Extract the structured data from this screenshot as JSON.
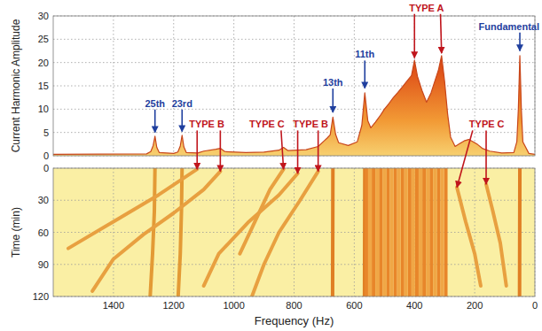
{
  "chart_data": [
    {
      "type": "area",
      "y_label": "Current Harmonic Amplitude",
      "xlim": [
        1600,
        0
      ],
      "xticks": [
        1400,
        1200,
        1000,
        800,
        600,
        400,
        200,
        0
      ],
      "ylim": [
        0,
        30
      ],
      "yticks": [
        0,
        5,
        10,
        15,
        20,
        25,
        30
      ],
      "grid": true,
      "tick_labels": "y",
      "series": [
        {
          "color": "#c8461a",
          "x": [
            1600,
            1290,
            1276,
            1268,
            1262,
            1256,
            1248,
            1200,
            1186,
            1178,
            1172,
            1166,
            1158,
            1120,
            1100,
            1060,
            1045,
            1030,
            960,
            900,
            850,
            835,
            820,
            760,
            720,
            700,
            690,
            680,
            671,
            662,
            652,
            620,
            590,
            575,
            565,
            555,
            545,
            530,
            515,
            500,
            485,
            470,
            455,
            440,
            425,
            410,
            400,
            390,
            375,
            360,
            345,
            330,
            320,
            310,
            300,
            290,
            280,
            265,
            250,
            235,
            220,
            205,
            190,
            175,
            150,
            110,
            70,
            60,
            55,
            50,
            45,
            40,
            20,
            0
          ],
          "values": [
            0.3,
            0.4,
            0.9,
            2.2,
            4.2,
            1.8,
            0.7,
            0.5,
            0.8,
            2.1,
            4.4,
            1.9,
            0.7,
            0.6,
            1.0,
            1.4,
            1.6,
            0.9,
            0.7,
            0.8,
            1.2,
            1.8,
            1.1,
            1.3,
            2.0,
            3.2,
            3.8,
            4.5,
            8.3,
            4.6,
            2.8,
            2.2,
            3.0,
            6.5,
            13.5,
            7.5,
            6.0,
            7.2,
            8.5,
            10.0,
            11.2,
            12.5,
            13.6,
            14.8,
            16.0,
            17.2,
            20.5,
            17.0,
            14.0,
            11.5,
            13.5,
            16.5,
            18.5,
            21.5,
            16.0,
            9.0,
            4.0,
            2.0,
            2.6,
            3.2,
            3.5,
            3.0,
            2.4,
            1.6,
            1.0,
            0.6,
            0.7,
            3.0,
            10.0,
            21.5,
            10.0,
            3.0,
            0.5,
            0.3
          ]
        }
      ],
      "annotations": [
        {
          "text": "25th",
          "color": "#1f3f9e",
          "x": 1262,
          "y": 10.5,
          "arrows": [
            {
              "x": 1262,
              "y": 5
            }
          ]
        },
        {
          "text": "23rd",
          "color": "#1f3f9e",
          "x": 1172,
          "y": 10.5,
          "arrows": [
            {
              "x": 1172,
              "y": 5.2
            }
          ]
        },
        {
          "text": "13th",
          "color": "#1f3f9e",
          "x": 671,
          "y": 15,
          "arrows": [
            {
              "x": 671,
              "y": 9.3
            }
          ]
        },
        {
          "text": "11th",
          "color": "#1f3f9e",
          "x": 565,
          "y": 21,
          "arrows": [
            {
              "x": 565,
              "y": 14.5
            }
          ]
        },
        {
          "text": "Fundamental",
          "color": "#1f3f9e",
          "x": 50,
          "y": 27,
          "arrows": [
            {
              "x": 50,
              "y": 22.5
            }
          ]
        },
        {
          "text": "TYPE A",
          "color": "#c0151c",
          "x": 360,
          "y": 31,
          "arrows": [
            {
              "x": 400,
              "y": 21
            },
            {
              "x": 310,
              "y": 22
            }
          ]
        },
        {
          "text": "TYPE B",
          "color": "#c0151c",
          "x": 1090,
          "y": 6,
          "arrows": [
            {
              "x": 1122,
              "time": 1
            },
            {
              "x": 1045,
              "time": 3
            }
          ]
        },
        {
          "text": "TYPE C",
          "color": "#c0151c",
          "x": 890,
          "y": 6,
          "arrows": [
            {
              "x": 835,
              "time": 1
            }
          ]
        },
        {
          "text": "TYPE B",
          "color": "#c0151c",
          "x": 745,
          "y": 6,
          "arrows": [
            {
              "x": 788,
              "time": 5
            },
            {
              "x": 720,
              "time": 3
            }
          ]
        },
        {
          "text": "TYPE C",
          "color": "#c0151c",
          "x": 160,
          "y": 6,
          "arrows": [
            {
              "x": 259,
              "time": 18
            },
            {
              "x": 162,
              "time": 15
            }
          ]
        }
      ]
    },
    {
      "type": "line",
      "x_label": "Frequency (Hz)",
      "y_label": "Time (min)",
      "xlim": [
        1600,
        0
      ],
      "xticks": [
        1400,
        1200,
        1000,
        800,
        600,
        400,
        200,
        0
      ],
      "ylim": [
        120,
        0
      ],
      "yticks": [
        0,
        30,
        60,
        90,
        120
      ],
      "grid": true,
      "series": [
        {
          "color": "#e39a35",
          "x": [
            1262,
            1264,
            1270,
            1278
          ],
          "values": [
            0,
            40,
            80,
            120
          ]
        },
        {
          "color": "#e39a35",
          "x": [
            1172,
            1174,
            1178,
            1185
          ],
          "values": [
            0,
            40,
            80,
            120
          ]
        },
        {
          "color": "#e07f24",
          "x": [
            671,
            672
          ],
          "values": [
            0,
            120
          ]
        },
        {
          "color": "#e07f24",
          "x": [
            565,
            566
          ],
          "values": [
            0,
            120
          ]
        },
        {
          "color": "#e07f24",
          "x": [
            50,
            51
          ],
          "values": [
            0,
            120
          ]
        },
        {
          "color": "#e8a040",
          "x": [
            1045,
            1100,
            1200,
            1300,
            1400,
            1470
          ],
          "values": [
            3,
            20,
            42,
            62,
            85,
            115
          ]
        },
        {
          "color": "#e8a040",
          "x": [
            1122,
            1250,
            1400,
            1550
          ],
          "values": [
            1,
            25,
            50,
            75
          ]
        },
        {
          "color": "#e8a040",
          "x": [
            720,
            780,
            850,
            900,
            940
          ],
          "values": [
            3,
            30,
            60,
            90,
            120
          ]
        },
        {
          "color": "#e8a040",
          "x": [
            788,
            850,
            950,
            1050,
            1100
          ],
          "values": [
            5,
            25,
            50,
            80,
            110
          ]
        },
        {
          "color": "#e8a040",
          "x": [
            835,
            880,
            930,
            980
          ],
          "values": [
            1,
            20,
            50,
            80
          ]
        },
        {
          "color": "#e8a040",
          "x": [
            259,
            230,
            200,
            180
          ],
          "values": [
            18,
            50,
            80,
            110
          ]
        },
        {
          "color": "#e8a040",
          "x": [
            162,
            140,
            115,
            95
          ],
          "values": [
            15,
            40,
            70,
            110
          ]
        },
        {
          "color": "#e8862a",
          "x": [
            296,
            296
          ],
          "values": [
            0,
            120
          ]
        },
        {
          "color": "#f0a746",
          "x": [
            308,
            308
          ],
          "values": [
            0,
            120
          ]
        },
        {
          "color": "#e8862a",
          "x": [
            320,
            320
          ],
          "values": [
            0,
            120
          ]
        },
        {
          "color": "#f0a746",
          "x": [
            332,
            332
          ],
          "values": [
            0,
            120
          ]
        },
        {
          "color": "#e8862a",
          "x": [
            344,
            344
          ],
          "values": [
            0,
            120
          ]
        },
        {
          "color": "#f0a746",
          "x": [
            356,
            356
          ],
          "values": [
            0,
            120
          ]
        },
        {
          "color": "#e8862a",
          "x": [
            368,
            368
          ],
          "values": [
            0,
            120
          ]
        },
        {
          "color": "#f0a746",
          "x": [
            380,
            380
          ],
          "values": [
            0,
            120
          ]
        },
        {
          "color": "#e8862a",
          "x": [
            392,
            392
          ],
          "values": [
            0,
            120
          ]
        },
        {
          "color": "#f0a746",
          "x": [
            404,
            404
          ],
          "values": [
            0,
            120
          ]
        },
        {
          "color": "#e8862a",
          "x": [
            416,
            416
          ],
          "values": [
            0,
            120
          ]
        },
        {
          "color": "#f0a746",
          "x": [
            428,
            428
          ],
          "values": [
            0,
            120
          ]
        },
        {
          "color": "#e8862a",
          "x": [
            440,
            440
          ],
          "values": [
            0,
            120
          ]
        },
        {
          "color": "#f0a746",
          "x": [
            452,
            452
          ],
          "values": [
            0,
            120
          ]
        },
        {
          "color": "#e8862a",
          "x": [
            464,
            464
          ],
          "values": [
            0,
            120
          ]
        },
        {
          "color": "#f0a746",
          "x": [
            476,
            476
          ],
          "values": [
            0,
            120
          ]
        },
        {
          "color": "#e8862a",
          "x": [
            488,
            488
          ],
          "values": [
            0,
            120
          ]
        },
        {
          "color": "#f0a746",
          "x": [
            500,
            500
          ],
          "values": [
            0,
            120
          ]
        },
        {
          "color": "#e8862a",
          "x": [
            512,
            512
          ],
          "values": [
            0,
            120
          ]
        },
        {
          "color": "#f0a746",
          "x": [
            524,
            524
          ],
          "values": [
            0,
            120
          ]
        },
        {
          "color": "#e8862a",
          "x": [
            536,
            536
          ],
          "values": [
            0,
            120
          ]
        },
        {
          "color": "#f0a746",
          "x": [
            548,
            548
          ],
          "values": [
            0,
            120
          ]
        },
        {
          "color": "#e8862a",
          "x": [
            560,
            560
          ],
          "values": [
            0,
            120
          ]
        }
      ]
    }
  ]
}
